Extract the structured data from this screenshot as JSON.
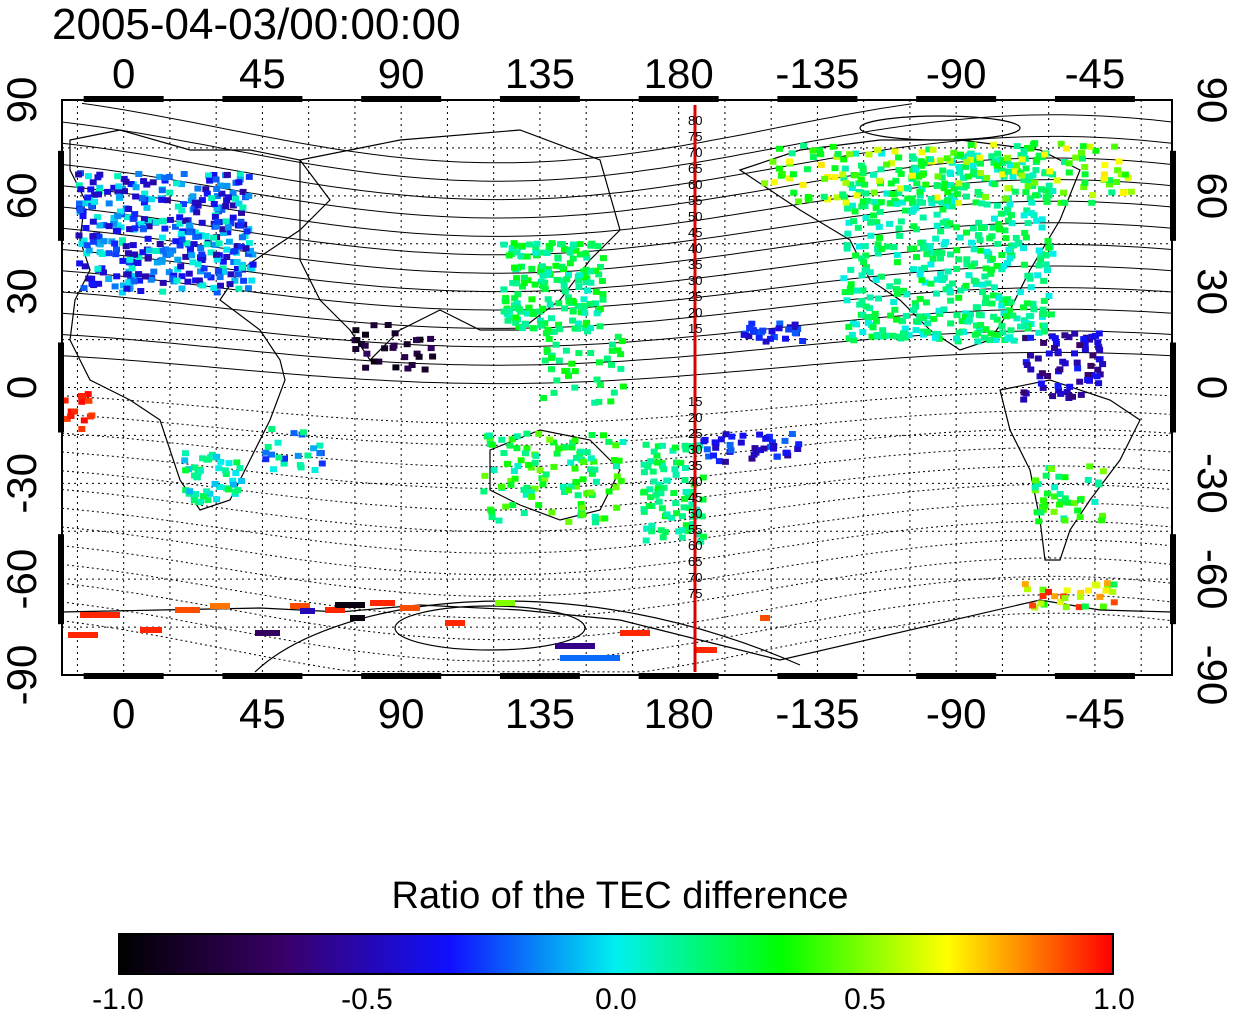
{
  "title": "2005-04-03/00:00:00",
  "map": {
    "lon_labels_top": [
      "0",
      "45",
      "90",
      "135",
      "180",
      "-135",
      "-90",
      "-45"
    ],
    "lon_labels_bottom": [
      "0",
      "45",
      "90",
      "135",
      "180",
      "-135",
      "-90",
      "-45"
    ],
    "lat_labels_left": [
      "90",
      "60",
      "30",
      "0",
      "-30",
      "-60",
      "-90"
    ],
    "lat_labels_right": [
      "90",
      "60",
      "30",
      "0",
      "-30",
      "-60",
      "-90"
    ],
    "meridian_line": {
      "longitude": 180,
      "color": "#dd0000"
    },
    "meridian_labels_north": [
      "80",
      "75",
      "70",
      "65",
      "60",
      "55",
      "50",
      "45",
      "40",
      "35",
      "30",
      "25",
      "20",
      "15"
    ],
    "meridian_labels_south": [
      "15",
      "20",
      "25",
      "30",
      "35",
      "40",
      "45",
      "50",
      "55",
      "60",
      "65",
      "70",
      "75"
    ]
  },
  "colorbar": {
    "title": "Ratio of the TEC difference",
    "min": -1.0,
    "max": 1.0,
    "tick_labels": [
      "-1.0",
      "-0.5",
      "0.0",
      "0.5",
      "1.0"
    ],
    "colors": [
      "#000000",
      "#3a006a",
      "#1010ff",
      "#00f0f0",
      "#00ff00",
      "#ffff00",
      "#ff0000"
    ]
  }
}
